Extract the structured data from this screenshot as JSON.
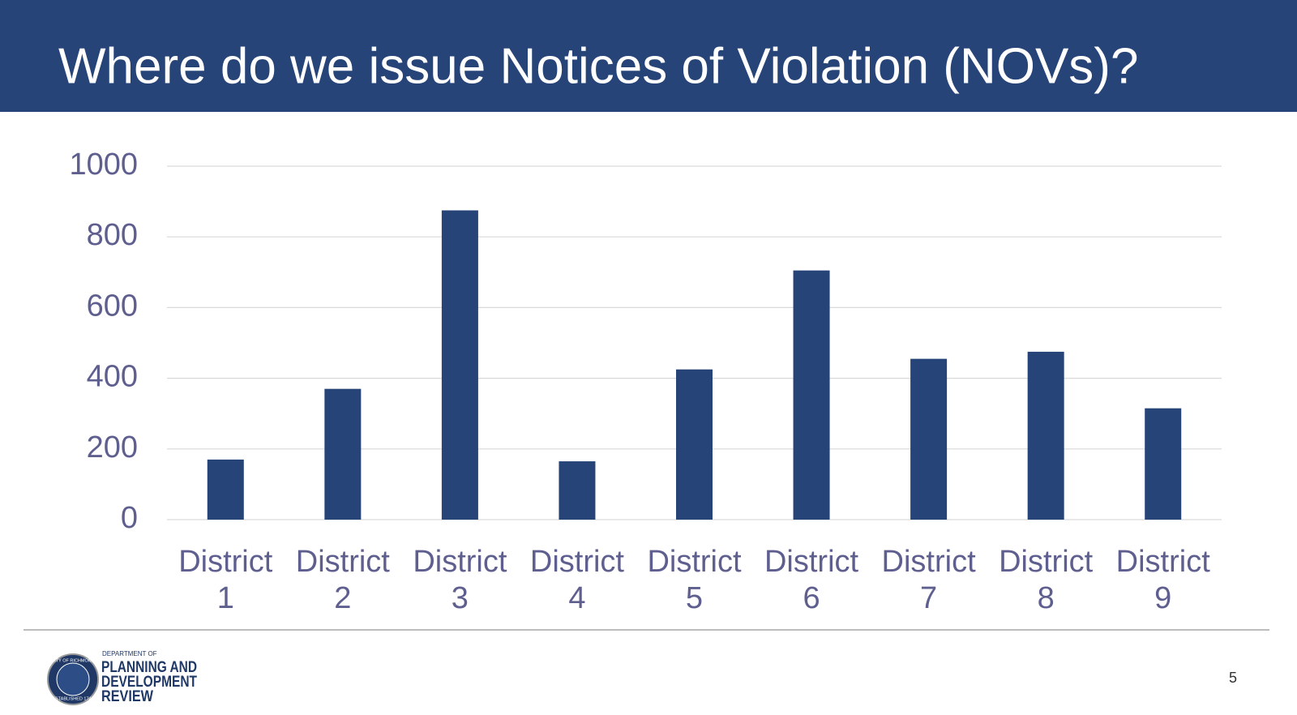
{
  "header": {
    "title": "Where do we issue Notices of Violation (NOVs)?"
  },
  "chart_data": {
    "type": "bar",
    "categories": [
      "District 1",
      "District 2",
      "District 3",
      "District 4",
      "District 5",
      "District 6",
      "District 7",
      "District 8",
      "District 9"
    ],
    "values": [
      170,
      370,
      875,
      165,
      425,
      705,
      455,
      475,
      315
    ],
    "color": "#264478",
    "ylim": [
      0,
      1000
    ],
    "yticks": [
      0,
      200,
      400,
      600,
      800,
      1000
    ],
    "grid": true
  },
  "footer": {
    "seal_top": "CITY OF RICHMOND",
    "seal_bottom": "ESTABLISHED 1742",
    "department": "DEPARTMENT OF",
    "name_lines": [
      "PLANNING AND",
      "DEVELOPMENT",
      "REVIEW"
    ],
    "page_number": "5"
  }
}
